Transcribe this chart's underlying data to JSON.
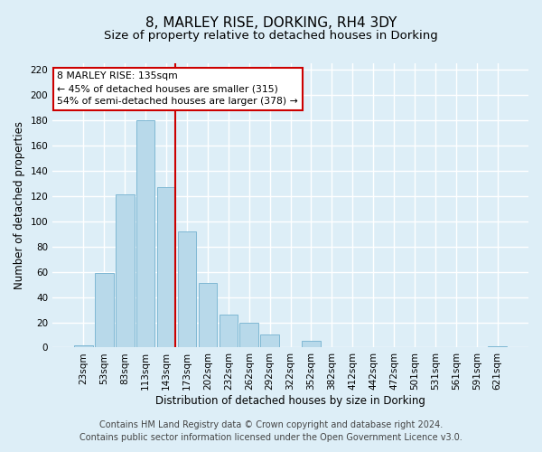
{
  "title": "8, MARLEY RISE, DORKING, RH4 3DY",
  "subtitle": "Size of property relative to detached houses in Dorking",
  "xlabel": "Distribution of detached houses by size in Dorking",
  "ylabel": "Number of detached properties",
  "bar_labels": [
    "23sqm",
    "53sqm",
    "83sqm",
    "113sqm",
    "143sqm",
    "173sqm",
    "202sqm",
    "232sqm",
    "262sqm",
    "292sqm",
    "322sqm",
    "352sqm",
    "382sqm",
    "412sqm",
    "442sqm",
    "472sqm",
    "501sqm",
    "531sqm",
    "561sqm",
    "591sqm",
    "621sqm"
  ],
  "bar_values": [
    2,
    59,
    121,
    180,
    127,
    92,
    51,
    26,
    20,
    10,
    0,
    5,
    0,
    0,
    0,
    0,
    0,
    0,
    0,
    0,
    1
  ],
  "bar_color": "#b8d9ea",
  "bar_edge_color": "#7fb8d4",
  "vline_x_index": 4,
  "vline_color": "#cc0000",
  "annotation_title": "8 MARLEY RISE: 135sqm",
  "annotation_line1": "← 45% of detached houses are smaller (315)",
  "annotation_line2": "54% of semi-detached houses are larger (378) →",
  "annotation_box_color": "#ffffff",
  "annotation_box_edge_color": "#cc0000",
  "ylim": [
    0,
    225
  ],
  "yticks": [
    0,
    20,
    40,
    60,
    80,
    100,
    120,
    140,
    160,
    180,
    200,
    220
  ],
  "footer_line1": "Contains HM Land Registry data © Crown copyright and database right 2024.",
  "footer_line2": "Contains public sector information licensed under the Open Government Licence v3.0.",
  "bg_color": "#ddeef7",
  "plot_bg_color": "#ddeef7",
  "grid_color": "#ffffff",
  "title_fontsize": 11,
  "subtitle_fontsize": 9.5,
  "axis_label_fontsize": 8.5,
  "tick_fontsize": 7.5,
  "footer_fontsize": 7
}
